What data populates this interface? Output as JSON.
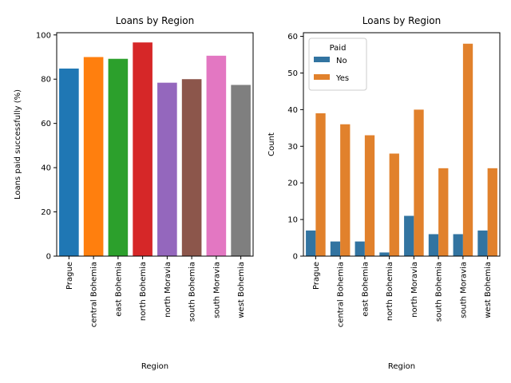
{
  "chart_data": [
    {
      "type": "bar",
      "title": "Loans by Region",
      "xlabel": "Region",
      "ylabel": "Loans paid successfully (%)",
      "ylim": [
        0,
        101
      ],
      "yticks": [
        0,
        20,
        40,
        60,
        80,
        100
      ],
      "categories": [
        "Prague",
        "central Bohemia",
        "east Bohemia",
        "north Bohemia",
        "north Moravia",
        "south Bohemia",
        "south Moravia",
        "west Bohemia"
      ],
      "values": [
        84.8,
        90.0,
        89.2,
        96.6,
        78.4,
        80.0,
        90.6,
        77.4
      ],
      "colors": [
        "#1f77b4",
        "#ff7f0e",
        "#2ca02c",
        "#d62728",
        "#9467bd",
        "#8c564b",
        "#e377c2",
        "#7f7f7f"
      ]
    },
    {
      "type": "bar",
      "title": "Loans by Region",
      "xlabel": "Region",
      "ylabel": "Count",
      "ylim": [
        0,
        61
      ],
      "yticks": [
        0,
        10,
        20,
        30,
        40,
        50,
        60
      ],
      "categories": [
        "Prague",
        "central Bohemia",
        "east Bohemia",
        "north Bohemia",
        "north Moravia",
        "south Bohemia",
        "south Moravia",
        "west Bohemia"
      ],
      "legend_title": "Paid",
      "legend_position": "upper-left",
      "series": [
        {
          "name": "No",
          "color": "#3274a1",
          "values": [
            7,
            4,
            4,
            1,
            11,
            6,
            6,
            7
          ]
        },
        {
          "name": "Yes",
          "color": "#e1812c",
          "values": [
            39,
            36,
            33,
            28,
            40,
            24,
            58,
            24
          ]
        }
      ]
    }
  ]
}
